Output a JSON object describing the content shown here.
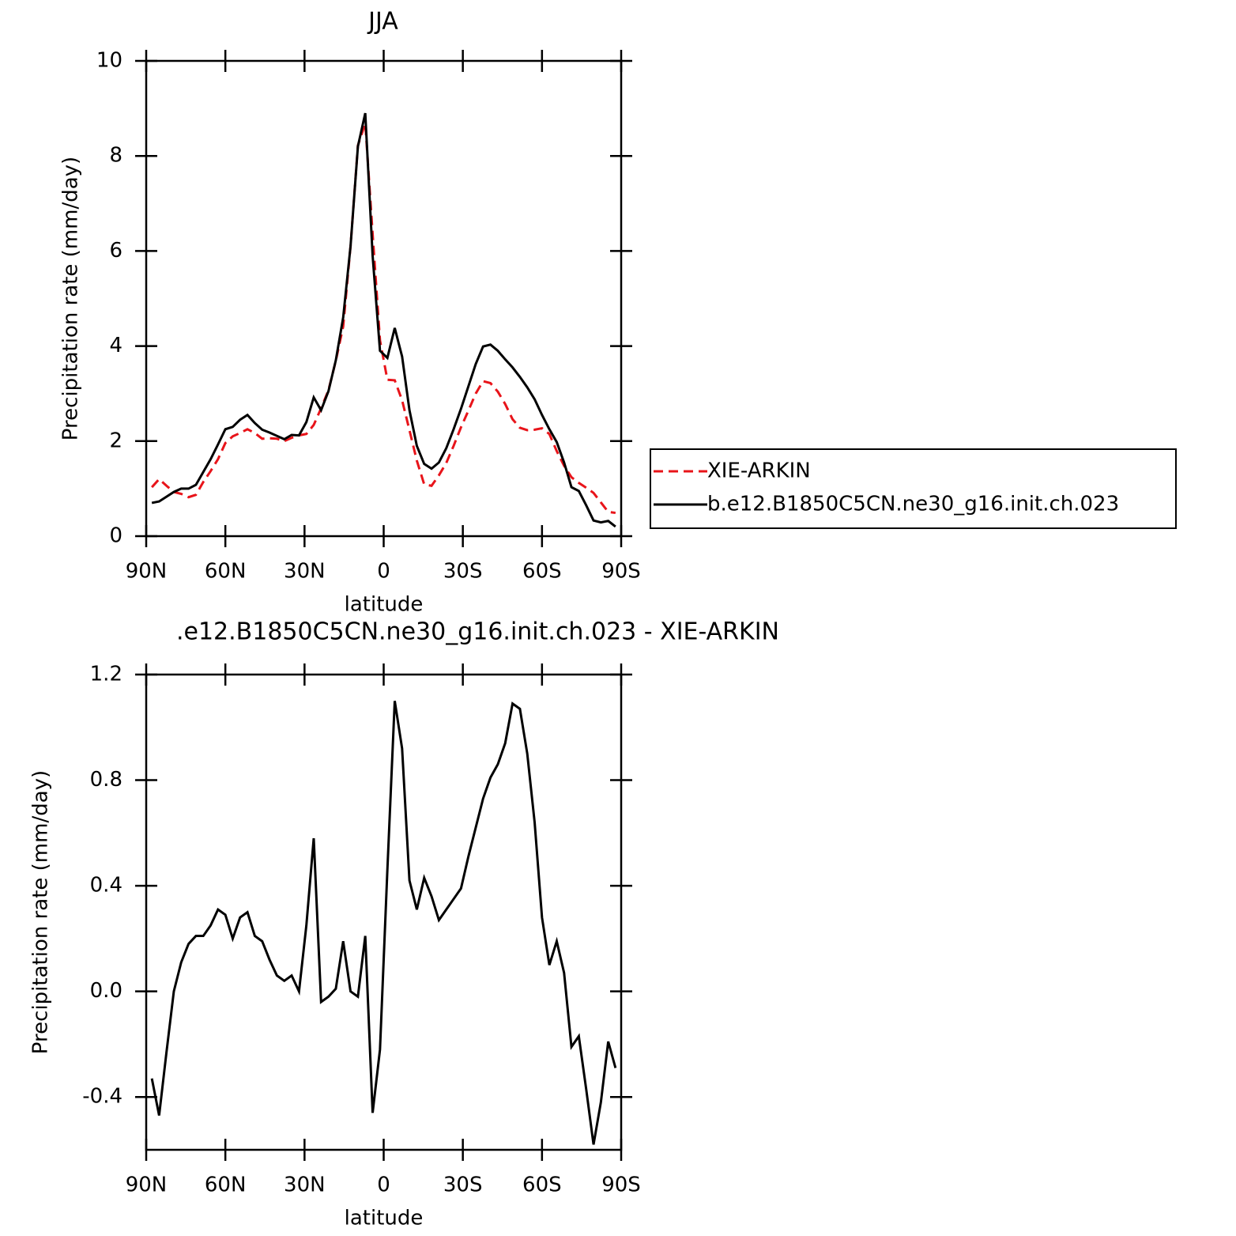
{
  "chart_data": [
    {
      "type": "line",
      "title": "JJA",
      "xlabel": "latitude",
      "ylabel": "Precipitation rate (mm/day)",
      "x": [
        87.86,
        85.1,
        82.31,
        79.53,
        76.74,
        73.95,
        71.16,
        68.37,
        65.58,
        62.79,
        60.0,
        57.21,
        54.42,
        51.63,
        48.84,
        46.05,
        43.26,
        40.47,
        37.67,
        34.88,
        32.09,
        29.3,
        26.51,
        23.72,
        20.93,
        18.14,
        15.35,
        12.56,
        9.77,
        6.98,
        4.19,
        1.4,
        -1.4,
        -4.19,
        -6.98,
        -9.77,
        -12.56,
        -15.35,
        -18.14,
        -20.93,
        -23.72,
        -26.51,
        -29.3,
        -32.09,
        -34.88,
        -37.67,
        -40.47,
        -43.26,
        -46.05,
        -48.84,
        -51.63,
        -54.42,
        -57.21,
        -60.0,
        -62.79,
        -65.58,
        -68.37,
        -71.16,
        -73.95,
        -76.74,
        -79.53,
        -82.31,
        -85.1,
        -87.86
      ],
      "series": [
        {
          "name": "XIE-ARKIN",
          "color": "#e8141a",
          "line_style": "dashed",
          "values": [
            1.03,
            1.2,
            1.06,
            0.93,
            0.89,
            0.82,
            0.87,
            1.14,
            1.37,
            1.62,
            1.96,
            2.1,
            2.17,
            2.25,
            2.17,
            2.05,
            2.06,
            2.05,
            2.0,
            2.07,
            2.12,
            2.15,
            2.34,
            2.69,
            3.07,
            3.69,
            4.41,
            6.1,
            8.22,
            8.69,
            6.36,
            4.12,
            3.29,
            3.28,
            2.86,
            2.23,
            1.59,
            1.09,
            1.06,
            1.28,
            1.54,
            1.9,
            2.29,
            2.64,
            3.0,
            3.26,
            3.22,
            3.04,
            2.78,
            2.46,
            2.28,
            2.23,
            2.24,
            2.27,
            2.15,
            1.79,
            1.48,
            1.24,
            1.12,
            1.02,
            0.91,
            0.71,
            0.51,
            0.49
          ]
        },
        {
          "name": "b.e12.B1850C5CN.ne30_g16.init.ch.023",
          "color": "#000000",
          "line_style": "solid",
          "values": [
            0.7,
            0.73,
            0.83,
            0.93,
            1.0,
            1.0,
            1.08,
            1.35,
            1.62,
            1.93,
            2.25,
            2.3,
            2.45,
            2.55,
            2.38,
            2.24,
            2.18,
            2.11,
            2.04,
            2.13,
            2.12,
            2.4,
            2.92,
            2.65,
            3.05,
            3.7,
            4.6,
            6.1,
            8.2,
            8.9,
            5.9,
            3.9,
            3.75,
            4.38,
            3.78,
            2.65,
            1.9,
            1.52,
            1.42,
            1.55,
            1.85,
            2.25,
            2.68,
            3.15,
            3.62,
            3.99,
            4.03,
            3.9,
            3.72,
            3.55,
            3.35,
            3.13,
            2.88,
            2.55,
            2.25,
            1.98,
            1.55,
            1.03,
            0.95,
            0.65,
            0.33,
            0.29,
            0.32,
            0.2
          ]
        }
      ],
      "xlim": [
        90,
        -90
      ],
      "xticks": [
        {
          "value": 90,
          "label": "90N"
        },
        {
          "value": 60,
          "label": "60N"
        },
        {
          "value": 30,
          "label": "30N"
        },
        0,
        {
          "value": -30,
          "label": "30S"
        },
        {
          "value": -60,
          "label": "60S"
        },
        {
          "value": -90,
          "label": "90S"
        }
      ],
      "ylim": [
        0,
        10
      ],
      "yticks": [
        0,
        2,
        4,
        6,
        8,
        10
      ],
      "legend": "right"
    },
    {
      "type": "line",
      "title": ".e12.B1850C5CN.ne30_g16.init.ch.023 - XIE-ARKIN",
      "xlabel": "latitude",
      "ylabel": "Precipitation rate (mm/day)",
      "x": [
        87.86,
        85.1,
        82.31,
        79.53,
        76.74,
        73.95,
        71.16,
        68.37,
        65.58,
        62.79,
        60.0,
        57.21,
        54.42,
        51.63,
        48.84,
        46.05,
        43.26,
        40.47,
        37.67,
        34.88,
        32.09,
        29.3,
        26.51,
        23.72,
        20.93,
        18.14,
        15.35,
        12.56,
        9.77,
        6.98,
        4.19,
        1.4,
        -1.4,
        -4.19,
        -6.98,
        -9.77,
        -12.56,
        -15.35,
        -18.14,
        -20.93,
        -23.72,
        -26.51,
        -29.3,
        -32.09,
        -34.88,
        -37.67,
        -40.47,
        -43.26,
        -46.05,
        -48.84,
        -51.63,
        -54.42,
        -57.21,
        -60.0,
        -62.79,
        -65.58,
        -68.37,
        -71.16,
        -73.95,
        -76.74,
        -79.53,
        -82.31,
        -85.1,
        -87.86
      ],
      "series": [
        {
          "color": "#000000",
          "line_style": "solid",
          "values": [
            -0.33,
            -0.47,
            -0.23,
            0.0,
            0.11,
            0.18,
            0.21,
            0.21,
            0.25,
            0.31,
            0.29,
            0.2,
            0.28,
            0.3,
            0.21,
            0.19,
            0.12,
            0.06,
            0.04,
            0.06,
            0.0,
            0.25,
            0.58,
            -0.04,
            -0.02,
            0.01,
            0.19,
            0.0,
            -0.02,
            0.21,
            -0.46,
            -0.22,
            0.46,
            1.1,
            0.92,
            0.42,
            0.31,
            0.43,
            0.36,
            0.27,
            0.31,
            0.35,
            0.39,
            0.51,
            0.62,
            0.73,
            0.81,
            0.86,
            0.94,
            1.09,
            1.07,
            0.9,
            0.64,
            0.28,
            0.1,
            0.19,
            0.07,
            -0.21,
            -0.17,
            -0.37,
            -0.58,
            -0.42,
            -0.19,
            -0.29
          ]
        }
      ],
      "xlim": [
        90,
        -90
      ],
      "xticks": [
        {
          "value": 90,
          "label": "90N"
        },
        {
          "value": 60,
          "label": "60N"
        },
        {
          "value": 30,
          "label": "30N"
        },
        0,
        {
          "value": -30,
          "label": "30S"
        },
        {
          "value": -60,
          "label": "60S"
        },
        {
          "value": -90,
          "label": "90S"
        }
      ],
      "ylim": [
        -0.6,
        1.2
      ],
      "yticks": [
        -0.4,
        {
          "value": 0,
          "label": "0.0"
        },
        0.4,
        0.8,
        1.2
      ]
    }
  ]
}
